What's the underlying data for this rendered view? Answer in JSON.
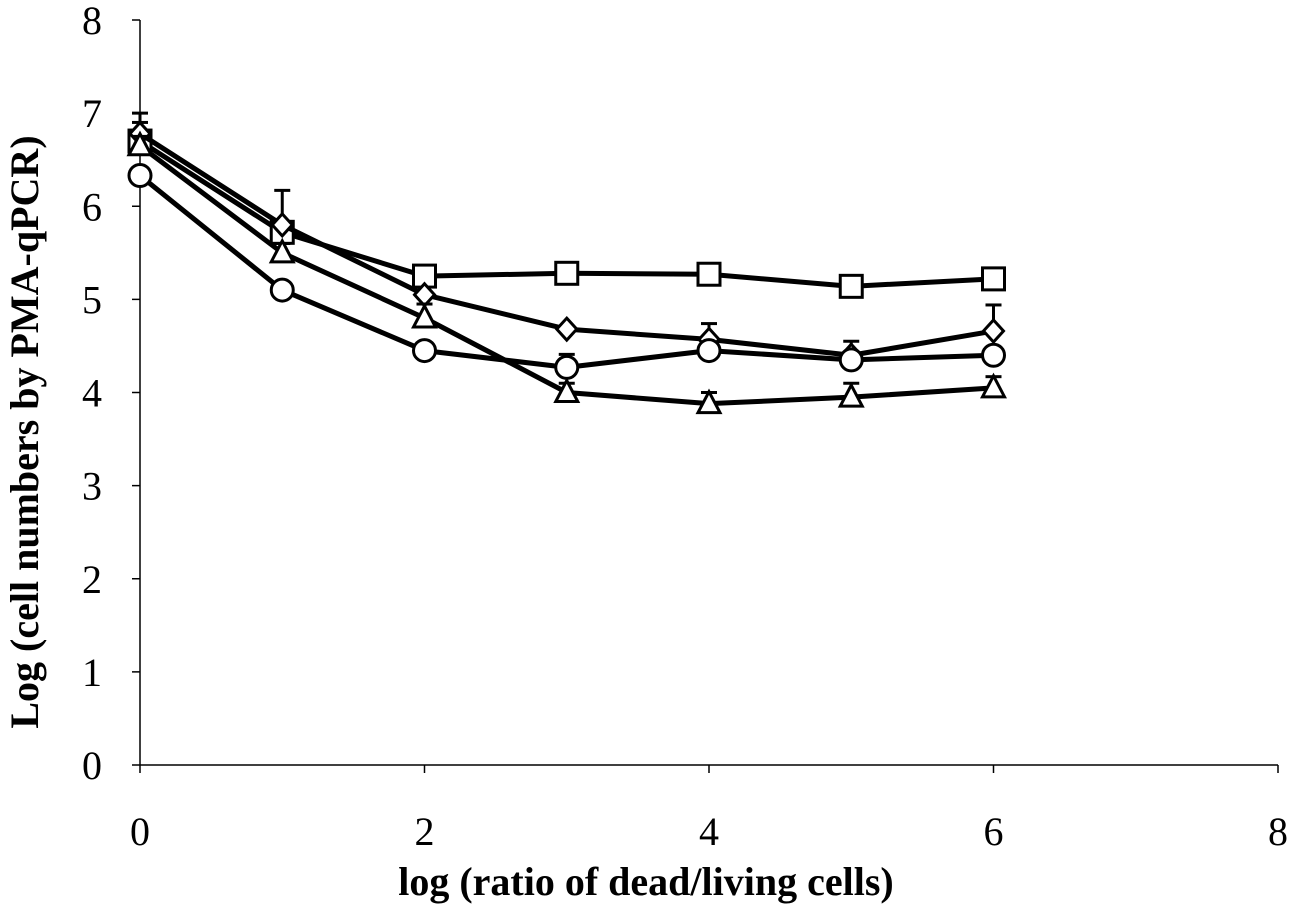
{
  "chart_data": {
    "type": "line",
    "title": "",
    "xlabel": "log (ratio of dead/living cells)",
    "ylabel": "Log (cell numbers by PMA-qPCR)",
    "xlim": [
      0,
      8
    ],
    "ylim": [
      0,
      8
    ],
    "xticks": [
      0,
      2,
      4,
      6,
      8
    ],
    "yticks": [
      0,
      1,
      2,
      3,
      4,
      5,
      6,
      7,
      8
    ],
    "grid": false,
    "line_color": "#000000",
    "marker_fill": "#ffffff",
    "series": [
      {
        "marker": "square",
        "x": [
          0,
          1,
          2,
          3,
          4,
          5,
          6
        ],
        "y": [
          6.7,
          5.72,
          5.25,
          5.28,
          5.27,
          5.14,
          5.22
        ],
        "err": [
          0.3,
          0.45,
          0,
          0,
          0,
          0,
          0
        ]
      },
      {
        "marker": "diamond",
        "x": [
          0,
          1,
          2,
          3,
          4,
          5,
          6
        ],
        "y": [
          6.78,
          5.8,
          5.05,
          4.68,
          4.57,
          4.4,
          4.66
        ],
        "err": [
          0.12,
          0,
          0,
          0,
          0.17,
          0.15,
          0.28
        ]
      },
      {
        "marker": "triangle",
        "x": [
          0,
          1,
          2,
          3,
          4,
          5,
          6
        ],
        "y": [
          6.65,
          5.5,
          4.8,
          4.0,
          3.88,
          3.95,
          4.05
        ],
        "err": [
          0.1,
          0.1,
          0.15,
          0.1,
          0.12,
          0.15,
          0.12
        ]
      },
      {
        "marker": "circle",
        "x": [
          0,
          1,
          2,
          3,
          4,
          5,
          6
        ],
        "y": [
          6.33,
          5.1,
          4.45,
          4.27,
          4.45,
          4.35,
          4.4
        ],
        "err": [
          0,
          0,
          0,
          0.14,
          0,
          0,
          0
        ]
      }
    ]
  }
}
